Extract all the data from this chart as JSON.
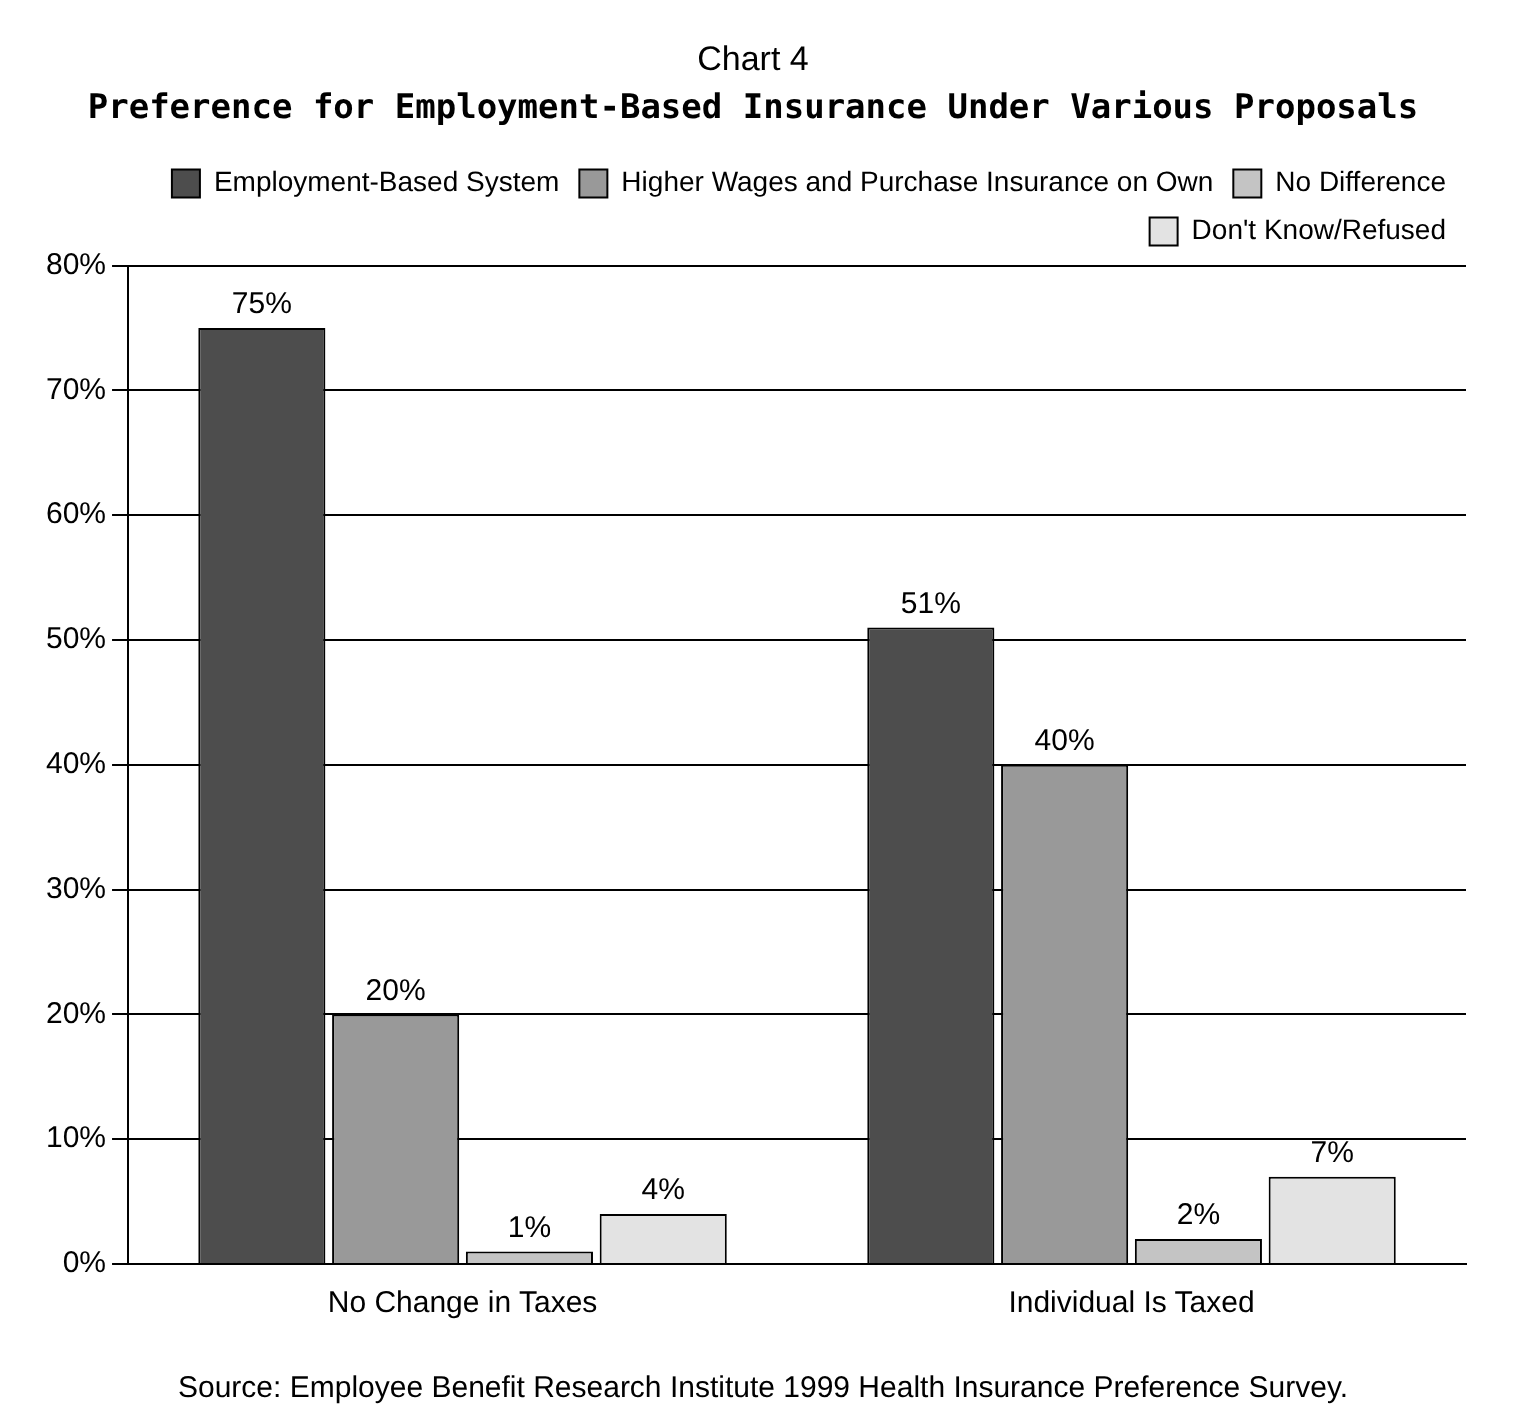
{
  "chart_data": {
    "type": "bar",
    "title": "Chart 4",
    "subtitle": "Preference for Employment-Based Insurance Under Various Proposals",
    "categories": [
      "No Change in Taxes",
      "Individual Is Taxed"
    ],
    "series": [
      {
        "name": "Employment-Based System",
        "color": "#4d4d4d",
        "values": [
          75,
          51
        ],
        "value_labels": [
          "75%",
          "51%"
        ]
      },
      {
        "name": "Higher Wages and Purchase Insurance on Own",
        "color": "#999999",
        "values": [
          20,
          40
        ],
        "value_labels": [
          "20%",
          "40%"
        ]
      },
      {
        "name": "No Difference",
        "color": "#c4c4c4",
        "values": [
          1,
          2
        ],
        "value_labels": [
          "1%",
          "2%"
        ]
      },
      {
        "name": "Don't Know/Refused",
        "color": "#e3e3e3",
        "values": [
          4,
          7
        ],
        "value_labels": [
          "4%",
          "7%"
        ]
      }
    ],
    "ylim": [
      0,
      80
    ],
    "yticks": [
      {
        "value": 0,
        "label": "0%"
      },
      {
        "value": 10,
        "label": "10%"
      },
      {
        "value": 20,
        "label": "20%"
      },
      {
        "value": 30,
        "label": "30%"
      },
      {
        "value": 40,
        "label": "40%"
      },
      {
        "value": 50,
        "label": "50%"
      },
      {
        "value": 60,
        "label": "60%"
      },
      {
        "value": 70,
        "label": "70%"
      },
      {
        "value": 80,
        "label": "80%"
      }
    ],
    "grid": "y",
    "legend": "top right",
    "annotations": [
      "Source: Employee Benefit Research Institute 1999 Health Insurance Preference Survey."
    ]
  }
}
